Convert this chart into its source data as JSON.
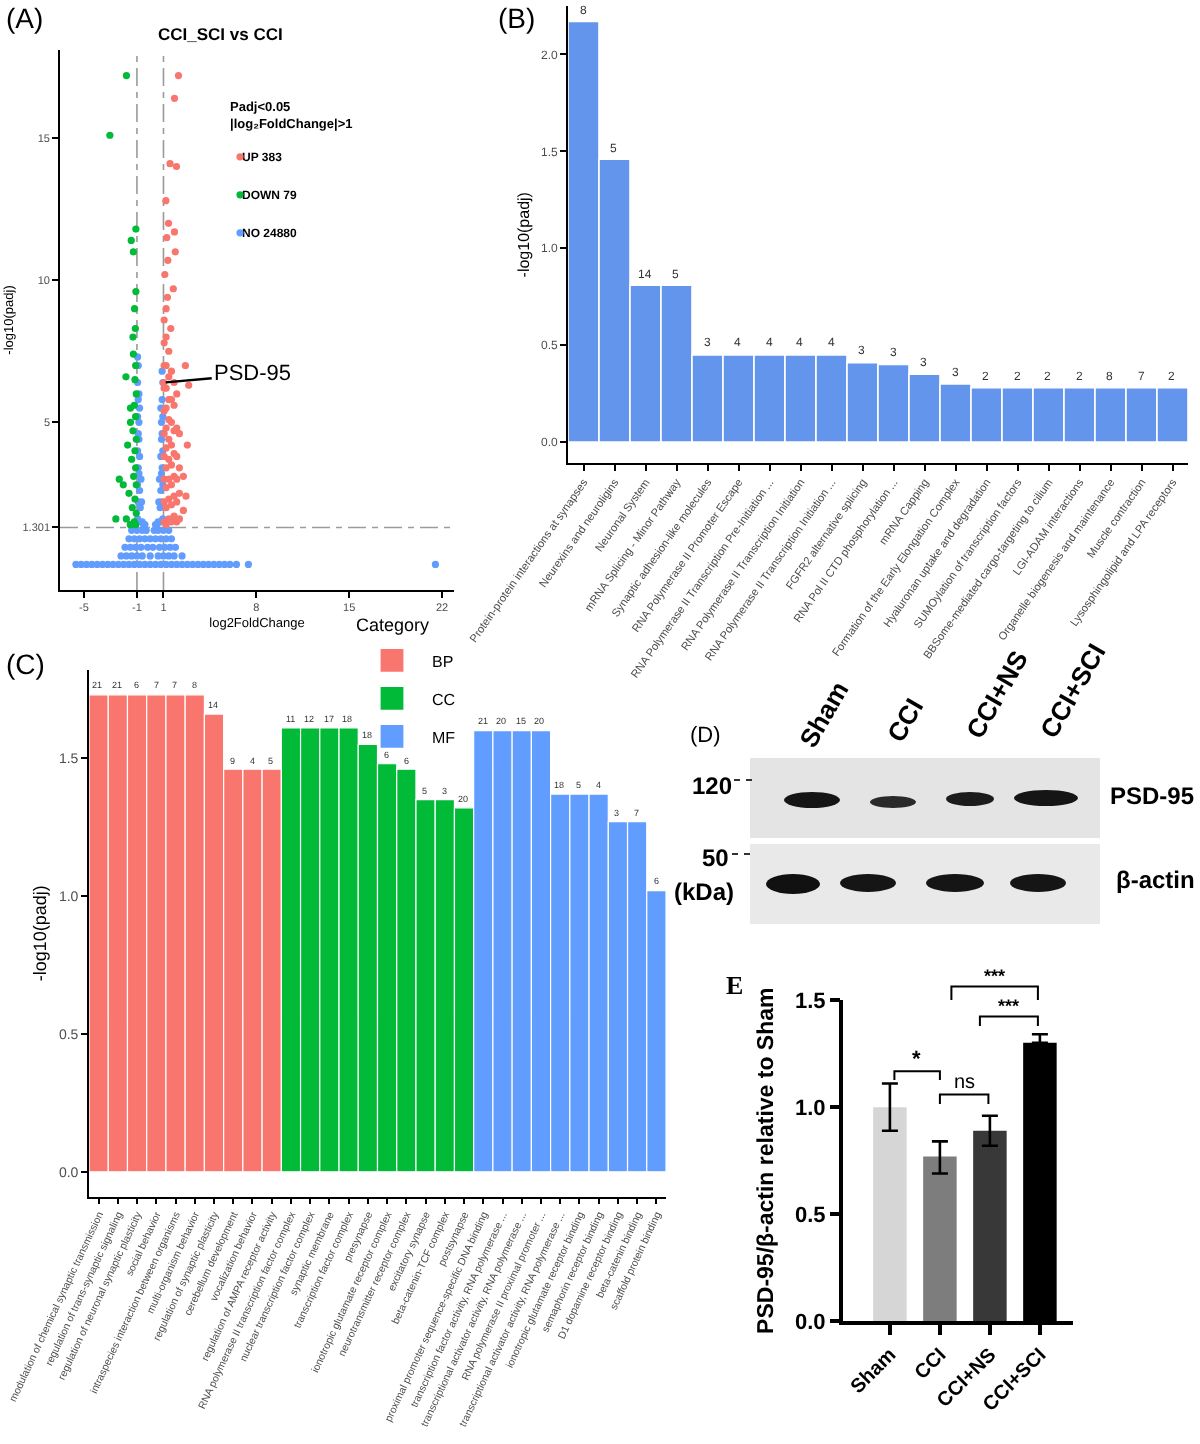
{
  "chart_data": [
    {
      "type": "scatter",
      "title": "CCI_SCI vs CCI",
      "xlabel": "log2FoldChange",
      "ylabel": "-log10(padj)",
      "legend_title": "Padj<0.05\n|log₂FoldChange|>1",
      "legend": "top",
      "marker": "circle",
      "annotations": [
        "(A)",
        {
          "text": "PSD-95",
          "x": 1.02,
          "y": 6.4
        }
      ],
      "xlim": [
        -6.8,
        22.9
      ],
      "ylim": [
        -0.9,
        18.1
      ],
      "xticks": [
        -5,
        -1,
        1,
        8,
        15,
        22
      ],
      "yticks": [
        1.301,
        5,
        10,
        15
      ],
      "ref_lines": [
        {
          "axis": "x",
          "value": -1,
          "color": "#9a9a9a",
          "line_style": "dashed"
        },
        {
          "axis": "x",
          "value": 1,
          "color": "#9a9a9a",
          "line_style": "dashed"
        },
        {
          "axis": "y",
          "value": 1.301,
          "color": "#9a9a9a",
          "line_style": "dashed"
        }
      ],
      "series": [
        {
          "name": "UP 383",
          "color": "#f8766d",
          "x": [
            1.05,
            1.05,
            1.05,
            1.05,
            1.05,
            1.05,
            1.05,
            1.05,
            1.05,
            1.05,
            1.2,
            1.2,
            1.2,
            1.2,
            1.2,
            1.2,
            1.2,
            1.2,
            1.2,
            1.2,
            1.2,
            1.4,
            1.4,
            1.4,
            1.4,
            1.4,
            1.4,
            1.4,
            1.4,
            1.4,
            1.6,
            1.6,
            1.6,
            1.6,
            1.6,
            1.6,
            1.6,
            1.6,
            1.8,
            1.8,
            1.8,
            1.8,
            1.8,
            1.8,
            1.8,
            2.0,
            2.0,
            2.0,
            2.0,
            2.0,
            2.0,
            2.2,
            2.2,
            2.2,
            2.2,
            2.5,
            2.5,
            2.65,
            2.9,
            2.8,
            2.7,
            1.74,
            1.33,
            1.89,
            1.83,
            1.38,
            1.18,
            1.49,
            1.98,
            1.83,
            2.13,
            1.3,
            1.1,
            1.55,
            1.25,
            1.02
          ],
          "values": [
            1.5,
            2.2,
            3.0,
            3.8,
            4.6,
            5.4,
            6.2,
            7.0,
            7.8,
            8.6,
            1.4,
            2.0,
            2.7,
            3.4,
            4.1,
            4.8,
            5.5,
            6.2,
            7.0,
            8.0,
            9.0,
            1.6,
            2.3,
            3.0,
            3.7,
            4.4,
            5.1,
            5.8,
            6.6,
            7.5,
            1.5,
            2.1,
            2.8,
            3.5,
            4.2,
            5.0,
            5.8,
            6.8,
            1.7,
            2.4,
            3.1,
            3.9,
            4.7,
            5.6,
            6.4,
            1.5,
            2.2,
            3.0,
            3.8,
            4.8,
            6.0,
            1.6,
            2.5,
            3.4,
            4.6,
            1.9,
            3.1,
            7.0,
            6.3,
            4.2,
            2.4,
            9.7,
            10.7,
            11.0,
            11.7,
            12.0,
            12.8,
            14.1,
            14.0,
            16.4,
            17.2,
            9.4,
            10.2,
            8.3,
            11.5,
            6.4
          ]
        },
        {
          "name": "DOWN 79",
          "color": "#00ba38",
          "x": [
            -1.79,
            -3.04,
            -1.08,
            -1.43,
            -1.27,
            -1.08,
            -1.18,
            -1.12,
            -1.27,
            -1.83,
            -1.49,
            -1.49,
            -2.33,
            -2.03,
            -2.59,
            -1.8,
            -1.1,
            -1.15,
            -1.05,
            -1.2,
            -1.1,
            -1.3,
            -1.05,
            -1.15,
            -1.4,
            -1.1,
            -1.25,
            -1.05,
            -1.6,
            -1.15,
            -1.35,
            -1.05,
            -1.2,
            -1.5,
            -1.1,
            -1.7,
            -1.3
          ],
          "values": [
            17.2,
            15.1,
            11.8,
            11.4,
            11.0,
            9.6,
            9.0,
            8.3,
            7.4,
            6.6,
            5.5,
            5.0,
            3.0,
            2.8,
            1.6,
            1.6,
            7.0,
            6.5,
            6.0,
            5.6,
            5.2,
            4.7,
            4.4,
            4.0,
            3.7,
            3.4,
            3.1,
            2.8,
            2.5,
            2.3,
            2.0,
            1.8,
            1.5,
            1.4,
            1.4,
            4.2,
            8.0
          ]
        },
        {
          "name": "NO 24880",
          "color": "#619cff",
          "x": [
            -5.6,
            -5.2,
            -4.8,
            -4.4,
            -4.0,
            -3.6,
            -3.2,
            -2.8,
            -2.4,
            -2.0,
            -1.6,
            -1.2,
            -0.8,
            -0.4,
            0,
            0.4,
            0.8,
            1.2,
            1.6,
            2.0,
            2.4,
            2.8,
            3.2,
            3.6,
            4.0,
            4.4,
            4.8,
            5.2,
            5.6,
            6.0,
            6.5,
            7.4,
            21.5,
            -2.2,
            -1.8,
            -1.4,
            -0.6,
            0.6,
            1.4,
            1.8,
            2.4,
            -1.9,
            -1.5,
            -1.1,
            -0.7,
            0.7,
            1.1,
            1.5,
            1.9,
            -1.6,
            -1.2,
            -0.8,
            -0.4,
            0.4,
            0.8,
            1.2,
            1.6,
            -1.4,
            -1.0,
            -0.6,
            -0.3,
            0.3,
            0.6,
            1.0,
            1.4,
            0,
            -0.2,
            0.2,
            0,
            -1.0,
            1.0,
            -0.95,
            -0.9,
            -0.95,
            -0.9,
            -0.95,
            -0.9,
            -0.95,
            -0.9,
            -0.95,
            -0.9,
            -0.95,
            -0.8,
            -0.75,
            -0.8,
            -0.85,
            -0.8,
            -0.85,
            -0.85,
            -0.8,
            -0.85,
            -0.6,
            -0.65,
            -0.7,
            -0.5,
            -0.4,
            0.95,
            0.9,
            0.95,
            0.9,
            0.95,
            0.9,
            0.95,
            0.9,
            0.95,
            0.9,
            0.8,
            0.75,
            0.8,
            0.85,
            0.8,
            0.85,
            0.85,
            0.8,
            0.6,
            0.65,
            0.7,
            0.5,
            0.4
          ],
          "values": [
            0,
            0,
            0,
            0,
            0,
            0,
            0,
            0,
            0,
            0,
            0,
            0,
            0,
            0,
            0,
            0,
            0,
            0,
            0,
            0,
            0,
            0,
            0,
            0,
            0,
            0,
            0,
            0,
            0,
            0,
            0,
            0,
            0,
            0.3,
            0.3,
            0.3,
            0.3,
            0.3,
            0.3,
            0.3,
            0.3,
            0.6,
            0.6,
            0.6,
            0.6,
            0.6,
            0.6,
            0.6,
            0.6,
            0.9,
            0.9,
            0.9,
            0.9,
            0.9,
            0.9,
            0.9,
            0.9,
            1.2,
            1.2,
            1.2,
            1.2,
            1.2,
            1.2,
            1.2,
            1.2,
            0.3,
            0.6,
            0.6,
            0.9,
            0.3,
            0.3,
            1.6,
            2.2,
            2.8,
            3.4,
            4.0,
            4.6,
            5.2,
            5.8,
            6.4,
            7.0,
            7.3,
            1.5,
            2.0,
            2.6,
            3.2,
            3.8,
            4.4,
            5.0,
            5.5,
            6.0,
            1.5,
            2.2,
            3.0,
            1.4,
            1.4,
            1.6,
            2.2,
            2.8,
            3.4,
            4.0,
            4.6,
            5.2,
            5.8,
            6.4,
            6.8,
            1.5,
            2.0,
            2.6,
            3.2,
            3.8,
            4.4,
            5.0,
            5.5,
            1.5,
            2.2,
            3.0,
            1.4,
            1.4
          ]
        }
      ]
    },
    {
      "type": "bar",
      "ylabel": "-log10(padj)",
      "color": "#6495ed",
      "categories": [
        "Protein-protein interactions at synapses",
        "Neurexins and neuroligins",
        "Neuronal System",
        "mRNA Splicing - Minor Pathway",
        "Synaptic adhesion-like molecules",
        "RNA Polymerase II Promoter Escape",
        "RNA Polymerase II Transcription Pre-Initiation ...",
        "RNA Polymerase II Transcription Initiation",
        "RNA Polymerase II Transcription Initiation ...",
        "FGFR2 alternative splicing",
        "RNA Pol II CTD phosphorylation ...",
        "mRNA Capping",
        "Formation of the Early Elongation Complex",
        "Hyaluronan uptake and degradation",
        "SUMOylation of transcription factors",
        "BBSome-mediated cargo-targeting to cilium",
        "LGI-ADAM interactions",
        "Organelle biogenesis and maintenance",
        "Muscle contraction",
        "Lysosphingolipid and LPA receptors"
      ],
      "values": [
        2.17,
        1.46,
        0.81,
        0.81,
        0.45,
        0.45,
        0.45,
        0.45,
        0.45,
        0.41,
        0.4,
        0.35,
        0.3,
        0.28,
        0.28,
        0.28,
        0.28,
        0.28,
        0.28,
        0.28
      ],
      "annotations": [
        "(B)",
        {
          "text": "8",
          "x": "Protein-protein interactions at synapses",
          "y": 2.17
        },
        {
          "text": "5",
          "x": "Neurexins and neuroligins",
          "y": 1.46
        },
        {
          "text": "14",
          "x": "Neuronal System",
          "y": 0.81
        },
        {
          "text": "5",
          "x": "mRNA Splicing - Minor Pathway",
          "y": 0.81
        },
        {
          "text": "3",
          "x": "Synaptic adhesion-like molecules",
          "y": 0.45
        },
        {
          "text": "4",
          "x": "RNA Polymerase II Promoter Escape",
          "y": 0.45
        },
        {
          "text": "4",
          "x": "RNA Polymerase II Transcription Pre-Initiation ...",
          "y": 0.45
        },
        {
          "text": "4",
          "x": "RNA Polymerase II Transcription Initiation",
          "y": 0.45
        },
        {
          "text": "4",
          "x": "RNA Polymerase II Transcription Initiation ...",
          "y": 0.45
        },
        {
          "text": "3",
          "x": "FGFR2 alternative splicing",
          "y": 0.41
        },
        {
          "text": "3",
          "x": "RNA Pol II CTD phosphorylation ...",
          "y": 0.4
        },
        {
          "text": "3",
          "x": "mRNA Capping",
          "y": 0.35
        },
        {
          "text": "3",
          "x": "Formation of the Early Elongation Complex",
          "y": 0.3
        },
        {
          "text": "2",
          "x": "Hyaluronan uptake and degradation",
          "y": 0.28
        },
        {
          "text": "2",
          "x": "SUMOylation of transcription factors",
          "y": 0.28
        },
        {
          "text": "2",
          "x": "BBSome-mediated cargo-targeting to cilium",
          "y": 0.28
        },
        {
          "text": "2",
          "x": "LGI-ADAM interactions",
          "y": 0.28
        },
        {
          "text": "8",
          "x": "Organelle biogenesis and maintenance",
          "y": 0.28
        },
        {
          "text": "7",
          "x": "Muscle contraction",
          "y": 0.28
        },
        {
          "text": "2",
          "x": "Lysosphingolipid and LPA receptors",
          "y": 0.28
        }
      ],
      "ylim": [
        -0.11,
        2.25
      ],
      "yticks": [
        {
          "value": 0,
          "label": "0.0"
        },
        0.5,
        {
          "value": 1,
          "label": "1.0"
        },
        1.5,
        {
          "value": 2,
          "label": "2.0"
        }
      ]
    },
    {
      "type": "bar",
      "ylabel": "-log10(padj)",
      "legend_title": "Category",
      "legend": "top",
      "categories": [
        "modulation of chemical synaptic transmission",
        "regulation of trans-synaptic signaling",
        "regulation of neuronal synaptic plasticity",
        "social behavior",
        "intraspecies interaction between organisms",
        "multi-organism behavior",
        "regulation of synaptic plasticity",
        "cerebellum development",
        "vocalization behavior",
        "regulation of AMPA receptor activity",
        "RNA polymerase II transcription factor complex",
        "nuclear transcription factor complex",
        "synaptic membrane",
        "transcription factor complex",
        "presynapse",
        "ionotropic glutamate receptor complex",
        "neurotransmitter receptor complex",
        "excitatory synapse",
        "beta-catenin-TCF complex",
        "postsynapse",
        "proximal promoter sequence-specific DNA binding",
        "transcription factor activity, RNA polymerase ...",
        "transcriptional activator activity, RNA polymerase ...",
        "RNA polymerase II proximal promoter ...",
        "transcriptional activator activity, RNA polymerase ...",
        "ionotropic glutamate receptor binding",
        "semaphorin receptor binding",
        "D1 dopamine receptor binding",
        "beta-catenin binding",
        "scaffold protein binding"
      ],
      "series": [
        {
          "name": "BP",
          "color": "#f8766d",
          "values": [
            1.73,
            1.73,
            1.73,
            1.73,
            1.73,
            1.73,
            1.66,
            1.46,
            1.46,
            1.46,
            null,
            null,
            null,
            null,
            null,
            null,
            null,
            null,
            null,
            null,
            null,
            null,
            null,
            null,
            null,
            null,
            null,
            null,
            null,
            null
          ]
        },
        {
          "name": "CC",
          "color": "#00ba38",
          "values": [
            null,
            null,
            null,
            null,
            null,
            null,
            null,
            null,
            null,
            null,
            1.61,
            1.61,
            1.61,
            1.61,
            1.55,
            1.48,
            1.46,
            1.35,
            1.35,
            1.32,
            null,
            null,
            null,
            null,
            null,
            null,
            null,
            null,
            null,
            null
          ]
        },
        {
          "name": "MF",
          "color": "#619cff",
          "values": [
            null,
            null,
            null,
            null,
            null,
            null,
            null,
            null,
            null,
            null,
            null,
            null,
            null,
            null,
            null,
            null,
            null,
            null,
            null,
            null,
            1.6,
            1.6,
            1.6,
            1.6,
            1.37,
            1.37,
            1.37,
            1.27,
            1.27,
            1.02
          ]
        }
      ],
      "annotations": [
        "(C)",
        {
          "text": "21",
          "x": "modulation of chemical synaptic transmission",
          "y": 1.73
        },
        {
          "text": "21",
          "x": "regulation of trans-synaptic signaling",
          "y": 1.73
        },
        {
          "text": "6",
          "x": "regulation of neuronal synaptic plasticity",
          "y": 1.73
        },
        {
          "text": "7",
          "x": "social behavior",
          "y": 1.73
        },
        {
          "text": "7",
          "x": "intraspecies interaction between organisms",
          "y": 1.73
        },
        {
          "text": "8",
          "x": "multi-organism behavior",
          "y": 1.73
        },
        {
          "text": "14",
          "x": "regulation of synaptic plasticity",
          "y": 1.66
        },
        {
          "text": "9",
          "x": "cerebellum development",
          "y": 1.46
        },
        {
          "text": "4",
          "x": "vocalization behavior",
          "y": 1.46
        },
        {
          "text": "5",
          "x": "regulation of AMPA receptor activity",
          "y": 1.46
        },
        {
          "text": "11",
          "x": "RNA polymerase II transcription factor complex",
          "y": 1.61
        },
        {
          "text": "12",
          "x": "nuclear transcription factor complex",
          "y": 1.61
        },
        {
          "text": "17",
          "x": "synaptic membrane",
          "y": 1.61
        },
        {
          "text": "18",
          "x": "transcription factor complex",
          "y": 1.61
        },
        {
          "text": "18",
          "x": "presynapse",
          "y": 1.55
        },
        {
          "text": "6",
          "x": "ionotropic glutamate receptor complex",
          "y": 1.48
        },
        {
          "text": "6",
          "x": "neurotransmitter receptor complex",
          "y": 1.46
        },
        {
          "text": "5",
          "x": "excitatory synapse",
          "y": 1.35
        },
        {
          "text": "3",
          "x": "beta-catenin-TCF complex",
          "y": 1.35
        },
        {
          "text": "20",
          "x": "postsynapse",
          "y": 1.32
        },
        {
          "text": "21",
          "x": "proximal promoter sequence-specific DNA binding",
          "y": 1.6
        },
        {
          "text": "20",
          "x": "transcription factor activity, RNA polymerase ...",
          "y": 1.6
        },
        {
          "text": "15",
          "x": "transcriptional activator activity, RNA polymerase ...",
          "y": 1.6
        },
        {
          "text": "20",
          "x": "RNA polymerase II proximal promoter ...",
          "y": 1.6
        },
        "18",
        {
          "text": "5",
          "x": "ionotropic glutamate receptor binding",
          "y": 1.37
        },
        {
          "text": "4",
          "x": "semaphorin receptor binding",
          "y": 1.37
        },
        {
          "text": "3",
          "x": "D1 dopamine receptor binding",
          "y": 1.27
        },
        {
          "text": "7",
          "x": "beta-catenin binding",
          "y": 1.27
        },
        {
          "text": "6",
          "x": "scaffold protein binding",
          "y": 1.02
        }
      ],
      "ylim": [
        -0.09,
        1.82
      ],
      "yticks": [
        {
          "value": 0,
          "label": "0.0"
        },
        0.5,
        {
          "value": 1,
          "label": "1.0"
        },
        1.5
      ]
    },
    {
      "type": "other",
      "categories": [
        "Sham",
        "CCI",
        "CCI+NS",
        "CCI+SCI"
      ],
      "annotations": [
        "(D)",
        "120",
        "50",
        "(kDa)",
        "PSD-95",
        "β-actin"
      ]
    },
    {
      "type": "bar",
      "ylabel": "PSD-95/β-actin relative to Sham",
      "annotations": [
        "E",
        "*",
        "ns",
        "***",
        "***"
      ],
      "categories": [
        "Sham",
        "CCI",
        "CCI+NS",
        "CCI+SCI"
      ],
      "values": [
        1.0,
        0.77,
        0.89,
        1.3
      ],
      "colors": [
        "#d6d6d6",
        "#7d7d7d",
        "#383838",
        "#000000"
      ],
      "errors": [
        [
          0.89,
          1.11
        ],
        [
          0.69,
          0.84
        ],
        [
          0.82,
          0.96
        ],
        [
          1.3,
          1.34
        ]
      ],
      "ylim": [
        0,
        1.5
      ],
      "yticks": [
        {
          "value": 0,
          "label": "0.0"
        },
        0.5,
        {
          "value": 1,
          "label": "1.0"
        },
        1.5
      ]
    }
  ]
}
